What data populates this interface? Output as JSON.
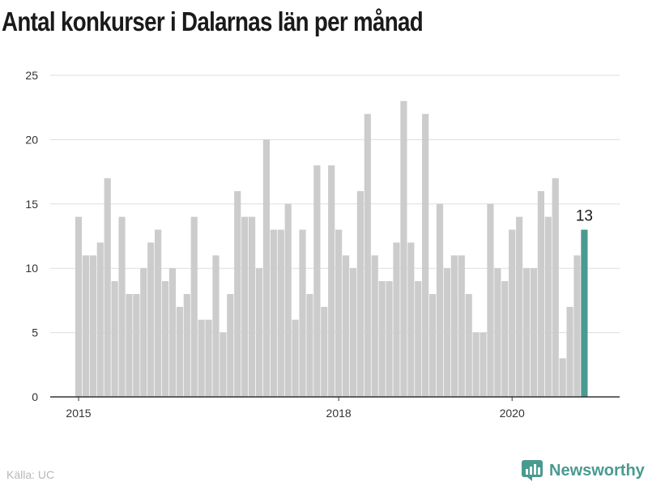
{
  "title": "Antal konkurser i Dalarnas län per månad",
  "source": "Källa: UC",
  "brand": {
    "name": "Newsworthy",
    "icon": "newsworthy-logo-icon"
  },
  "colors": {
    "bar": "#cccccc",
    "highlight": "#4a9a8f",
    "grid": "#dddddd",
    "axis": "#333333",
    "tick_text": "#333333"
  },
  "chart_data": {
    "type": "bar",
    "title": "Antal konkurser i Dalarnas län per månad",
    "xlabel": "",
    "ylabel": "",
    "ylim": [
      0,
      25
    ],
    "yticks": [
      0,
      5,
      10,
      15,
      20,
      25
    ],
    "x_tick_labels": [
      {
        "label": "2015",
        "index": 0
      },
      {
        "label": "2018",
        "index": 36
      },
      {
        "label": "2020",
        "index": 60
      }
    ],
    "grid": true,
    "legend": "none",
    "start": "2015-01",
    "values": [
      14,
      11,
      11,
      12,
      17,
      9,
      14,
      8,
      8,
      10,
      12,
      13,
      9,
      10,
      7,
      8,
      14,
      6,
      6,
      11,
      5,
      8,
      16,
      14,
      14,
      10,
      20,
      13,
      13,
      15,
      6,
      13,
      8,
      18,
      7,
      18,
      13,
      11,
      10,
      16,
      22,
      11,
      9,
      9,
      12,
      23,
      12,
      9,
      22,
      8,
      15,
      10,
      11,
      11,
      8,
      5,
      5,
      15,
      10,
      9,
      13,
      14,
      10,
      10,
      16,
      14,
      17,
      3,
      7,
      11,
      13
    ],
    "highlight_index": 70,
    "highlight_label": "13"
  }
}
